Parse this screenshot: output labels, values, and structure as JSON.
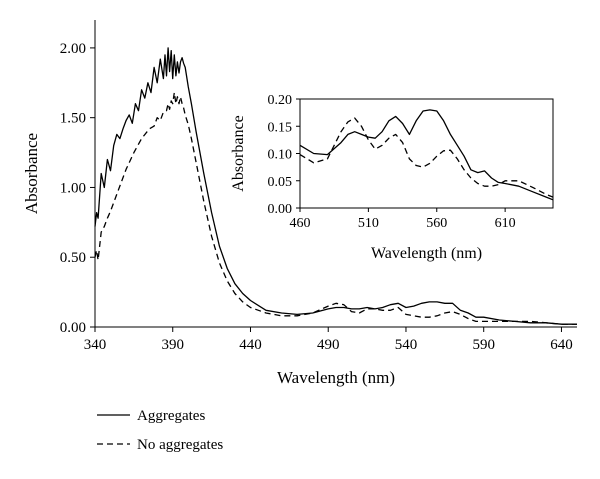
{
  "chart_data": [
    {
      "type": "line",
      "xlabel": "Wavelength (nm)",
      "ylabel": "Absorbance",
      "xlim": [
        340,
        650
      ],
      "ylim": [
        0,
        2.2
      ],
      "xticks": [
        340,
        390,
        440,
        490,
        540,
        590,
        640
      ],
      "yticks": [
        0.0,
        0.5,
        1.0,
        1.5,
        2.0
      ],
      "xtick_labels": [
        "340",
        "390",
        "440",
        "490",
        "540",
        "590",
        "640"
      ],
      "ytick_labels": [
        "0.00",
        "0.50",
        "1.00",
        "1.50",
        "2.00"
      ],
      "grid": false,
      "legend_position": "bottom-left, below plot",
      "series": [
        {
          "name": "Aggregates",
          "style": "solid",
          "x": [
            340,
            341,
            342,
            344,
            346,
            348,
            350,
            352,
            354,
            356,
            358,
            360,
            362,
            364,
            366,
            368,
            370,
            372,
            374,
            376,
            378,
            380,
            382,
            384,
            385,
            386,
            387,
            388,
            389,
            390,
            391,
            392,
            393,
            394,
            395,
            396,
            397,
            398,
            400,
            402,
            405,
            410,
            415,
            420,
            425,
            430,
            435,
            440,
            450,
            460,
            470,
            480,
            490,
            495,
            500,
            505,
            510,
            515,
            520,
            525,
            530,
            535,
            540,
            545,
            550,
            555,
            560,
            565,
            570,
            575,
            580,
            585,
            590,
            600,
            610,
            620,
            630,
            640,
            650
          ],
          "y": [
            0.72,
            0.82,
            0.78,
            1.1,
            1.0,
            1.2,
            1.12,
            1.3,
            1.38,
            1.35,
            1.42,
            1.48,
            1.52,
            1.46,
            1.6,
            1.55,
            1.7,
            1.64,
            1.75,
            1.68,
            1.86,
            1.75,
            1.92,
            1.78,
            1.95,
            1.8,
            2.0,
            1.83,
            1.98,
            1.78,
            1.95,
            1.8,
            1.9,
            1.82,
            1.9,
            1.93,
            1.89,
            1.86,
            1.72,
            1.6,
            1.4,
            1.1,
            0.82,
            0.58,
            0.42,
            0.31,
            0.24,
            0.19,
            0.12,
            0.1,
            0.09,
            0.1,
            0.13,
            0.14,
            0.14,
            0.13,
            0.13,
            0.14,
            0.13,
            0.14,
            0.16,
            0.17,
            0.14,
            0.15,
            0.17,
            0.18,
            0.18,
            0.17,
            0.17,
            0.12,
            0.1,
            0.07,
            0.07,
            0.05,
            0.04,
            0.03,
            0.03,
            0.02,
            0.02
          ]
        },
        {
          "name": "No aggregates",
          "style": "dashed",
          "x": [
            340,
            341,
            342,
            344,
            346,
            348,
            350,
            355,
            360,
            365,
            370,
            375,
            378,
            380,
            382,
            384,
            386,
            387,
            388,
            389,
            390,
            391,
            392,
            393,
            394,
            395,
            396,
            397,
            398,
            400,
            402,
            405,
            410,
            415,
            420,
            425,
            430,
            435,
            440,
            450,
            460,
            470,
            480,
            490,
            495,
            500,
            505,
            510,
            515,
            520,
            525,
            530,
            535,
            540,
            545,
            550,
            555,
            560,
            565,
            570,
            575,
            580,
            585,
            590,
            600,
            610,
            620,
            630,
            640,
            650
          ],
          "y": [
            0.5,
            0.55,
            0.48,
            0.68,
            0.72,
            0.78,
            0.83,
            0.98,
            1.13,
            1.25,
            1.35,
            1.42,
            1.44,
            1.5,
            1.48,
            1.54,
            1.55,
            1.6,
            1.56,
            1.62,
            1.6,
            1.68,
            1.6,
            1.65,
            1.6,
            1.65,
            1.6,
            1.57,
            1.52,
            1.45,
            1.35,
            1.18,
            0.9,
            0.65,
            0.46,
            0.33,
            0.24,
            0.18,
            0.14,
            0.1,
            0.08,
            0.08,
            0.1,
            0.15,
            0.17,
            0.16,
            0.11,
            0.1,
            0.13,
            0.13,
            0.12,
            0.12,
            0.14,
            0.09,
            0.08,
            0.07,
            0.07,
            0.08,
            0.1,
            0.11,
            0.09,
            0.06,
            0.04,
            0.04,
            0.04,
            0.04,
            0.04,
            0.03,
            0.02,
            0.02
          ]
        }
      ]
    },
    {
      "type": "line",
      "inset": true,
      "xlabel": "Wavelength (nm)",
      "ylabel": "Absorbance",
      "xlim": [
        460,
        645
      ],
      "ylim": [
        0,
        0.2
      ],
      "xticks": [
        460,
        510,
        560,
        610
      ],
      "yticks": [
        0.0,
        0.05,
        0.1,
        0.15,
        0.2
      ],
      "xtick_labels": [
        "460",
        "510",
        "560",
        "610"
      ],
      "ytick_labels": [
        "0.00",
        "0.05",
        "0.10",
        "0.15",
        "0.20"
      ],
      "grid": false,
      "series": [
        {
          "name": "Aggregates",
          "style": "solid",
          "x": [
            460,
            470,
            480,
            490,
            495,
            500,
            505,
            510,
            515,
            520,
            525,
            530,
            535,
            540,
            545,
            550,
            555,
            560,
            565,
            570,
            575,
            580,
            585,
            590,
            595,
            600,
            605,
            610,
            620,
            630,
            640,
            645
          ],
          "y": [
            0.115,
            0.1,
            0.098,
            0.12,
            0.135,
            0.14,
            0.135,
            0.13,
            0.128,
            0.14,
            0.16,
            0.168,
            0.155,
            0.135,
            0.16,
            0.178,
            0.18,
            0.178,
            0.16,
            0.135,
            0.115,
            0.095,
            0.07,
            0.065,
            0.068,
            0.055,
            0.047,
            0.045,
            0.04,
            0.03,
            0.02,
            0.015
          ]
        },
        {
          "name": "No aggregates",
          "style": "dashed",
          "x": [
            460,
            470,
            480,
            490,
            495,
            500,
            505,
            510,
            515,
            520,
            525,
            530,
            535,
            540,
            545,
            550,
            555,
            560,
            565,
            570,
            575,
            580,
            585,
            590,
            595,
            600,
            605,
            610,
            620,
            630,
            640,
            645
          ],
          "y": [
            0.098,
            0.083,
            0.09,
            0.14,
            0.158,
            0.165,
            0.15,
            0.125,
            0.108,
            0.115,
            0.128,
            0.135,
            0.12,
            0.09,
            0.078,
            0.075,
            0.082,
            0.095,
            0.105,
            0.106,
            0.09,
            0.07,
            0.055,
            0.045,
            0.04,
            0.04,
            0.043,
            0.05,
            0.05,
            0.038,
            0.025,
            0.02
          ]
        }
      ]
    }
  ],
  "legend": {
    "items": [
      {
        "label": "Aggregates",
        "style": "solid"
      },
      {
        "label": "No aggregates",
        "style": "dashed"
      }
    ]
  }
}
